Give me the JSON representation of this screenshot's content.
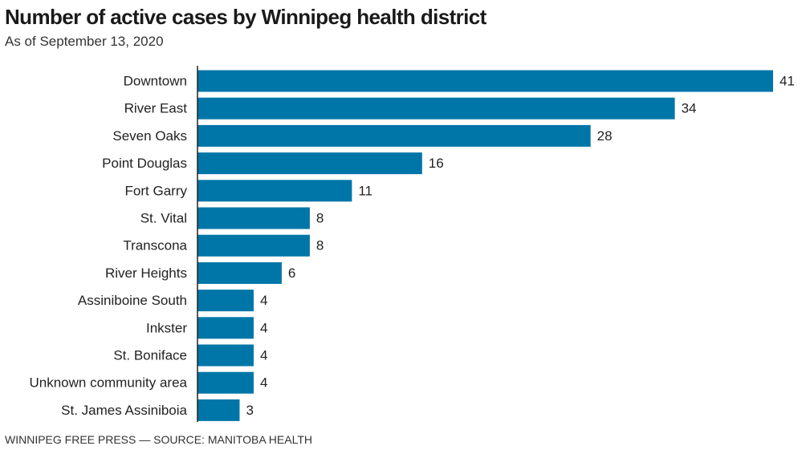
{
  "header": {
    "title": "Number of active cases by Winnipeg health district",
    "subtitle": "As of September 13, 2020"
  },
  "footer": {
    "credit": "WINNIPEG FREE PRESS — SOURCE: MANITOBA HEALTH"
  },
  "colors": {
    "bar": "#0076a8",
    "axis": "#222222"
  },
  "chart_data": {
    "type": "bar",
    "orientation": "horizontal",
    "title": "Number of active cases by Winnipeg health district",
    "subtitle": "As of September 13, 2020",
    "xlabel": "",
    "ylabel": "",
    "grid": false,
    "categories": [
      "Downtown",
      "River East",
      "Seven Oaks",
      "Point Douglas",
      "Fort Garry",
      "St. Vital",
      "Transcona",
      "River Heights",
      "Assiniboine South",
      "Inkster",
      "St. Boniface",
      "Unknown community area",
      "St. James Assiniboia"
    ],
    "values": [
      41,
      34,
      28,
      16,
      11,
      8,
      8,
      6,
      4,
      4,
      4,
      4,
      3
    ]
  }
}
